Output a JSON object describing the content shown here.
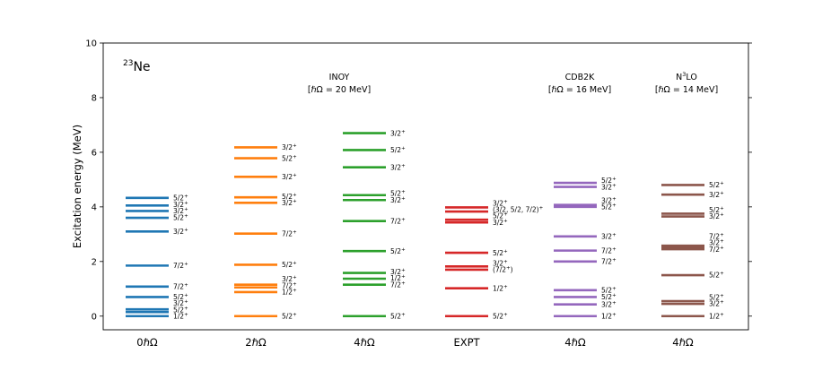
{
  "chart_data": {
    "type": "level-scheme",
    "nucleus": "23Ne",
    "nucleus_mass": "23",
    "nucleus_symbol": "Ne",
    "ylabel": "Excitation energy (MeV)",
    "ylim": [
      -0.5,
      10
    ],
    "yticks": [
      "0",
      "2",
      "4",
      "6",
      "8",
      "10"
    ],
    "grid": false,
    "annotations": {
      "inoy": {
        "line1": "INOY",
        "line2": "[ℏΩ = 20 MeV]"
      },
      "cdb2k": {
        "line1": "CDB2K",
        "line2": "[ℏΩ = 16 MeV]"
      },
      "n3lo": {
        "line1_main": "N",
        "line1_sup": "3",
        "line1_rest": "LO",
        "line2": "[ℏΩ = 14 MeV]"
      }
    },
    "columns": [
      {
        "label": "0ℏΩ",
        "color": "#1f77b4",
        "levels": [
          {
            "e": 0.0,
            "j": "1/2+"
          },
          {
            "e": 0.15,
            "j": "5/2+"
          },
          {
            "e": 0.25,
            "j": "3/2+"
          },
          {
            "e": 0.7,
            "j": "5/2+"
          },
          {
            "e": 1.08,
            "j": "7/2+"
          },
          {
            "e": 1.85,
            "j": "7/2+"
          },
          {
            "e": 3.1,
            "j": "3/2+"
          },
          {
            "e": 3.6,
            "j": "5/2+"
          },
          {
            "e": 3.85,
            "j": "3/2+"
          },
          {
            "e": 4.05,
            "j": "3/2+"
          },
          {
            "e": 4.33,
            "j": "5/2+"
          }
        ]
      },
      {
        "label": "2ℏΩ",
        "color": "#ff7f0e",
        "levels": [
          {
            "e": 0.0,
            "j": "5/2+"
          },
          {
            "e": 0.88,
            "j": "1/2+"
          },
          {
            "e": 1.05,
            "j": "7/2+"
          },
          {
            "e": 1.15,
            "j": "3/2+"
          },
          {
            "e": 1.88,
            "j": "5/2+"
          },
          {
            "e": 3.02,
            "j": "7/2+"
          },
          {
            "e": 4.15,
            "j": "3/2+"
          },
          {
            "e": 4.35,
            "j": "5/2+"
          },
          {
            "e": 5.1,
            "j": "3/2+"
          },
          {
            "e": 5.78,
            "j": "5/2+"
          },
          {
            "e": 6.18,
            "j": "3/2+"
          }
        ]
      },
      {
        "label": "4ℏΩ",
        "color": "#2ca02c",
        "levels": [
          {
            "e": 0.0,
            "j": "5/2+"
          },
          {
            "e": 1.15,
            "j": "7/2+"
          },
          {
            "e": 1.37,
            "j": "1/2+"
          },
          {
            "e": 1.58,
            "j": "3/2+"
          },
          {
            "e": 2.38,
            "j": "5/2+"
          },
          {
            "e": 3.48,
            "j": "7/2+"
          },
          {
            "e": 4.25,
            "j": "3/2+"
          },
          {
            "e": 4.43,
            "j": "5/2+"
          },
          {
            "e": 5.45,
            "j": "3/2+"
          },
          {
            "e": 6.08,
            "j": "5/2+"
          },
          {
            "e": 6.7,
            "j": "3/2+"
          }
        ]
      },
      {
        "label": "EXPT",
        "color": "#d62728",
        "levels": [
          {
            "e": 0.0,
            "j": "5/2+"
          },
          {
            "e": 1.02,
            "j": "1/2+"
          },
          {
            "e": 1.7,
            "j": "(7/2+)"
          },
          {
            "e": 1.82,
            "j": "3/2+"
          },
          {
            "e": 2.32,
            "j": "5/2+"
          },
          {
            "e": 3.43,
            "j": "3/2+"
          },
          {
            "e": 3.53,
            "j": "5/2+"
          },
          {
            "e": 3.83,
            "j": "(3/2, 5/2, 7/2)+"
          },
          {
            "e": 3.98,
            "j": "3/2+"
          }
        ]
      },
      {
        "label": "4ℏΩ",
        "color": "#9467bd",
        "levels": [
          {
            "e": 0.0,
            "j": "1/2+"
          },
          {
            "e": 0.43,
            "j": "3/2+"
          },
          {
            "e": 0.7,
            "j": "5/2+"
          },
          {
            "e": 0.95,
            "j": "5/2+"
          },
          {
            "e": 2.0,
            "j": "7/2+"
          },
          {
            "e": 2.4,
            "j": "7/2+"
          },
          {
            "e": 2.92,
            "j": "3/2+"
          },
          {
            "e": 4.0,
            "j": "5/2+"
          },
          {
            "e": 4.07,
            "j": "3/2+"
          },
          {
            "e": 4.73,
            "j": "3/2+"
          },
          {
            "e": 4.88,
            "j": "5/2+"
          }
        ]
      },
      {
        "label": "4ℏΩ",
        "color": "#8c564b",
        "levels": [
          {
            "e": 0.0,
            "j": "1/2+"
          },
          {
            "e": 0.45,
            "j": "3/2+"
          },
          {
            "e": 0.55,
            "j": "5/2+"
          },
          {
            "e": 1.5,
            "j": "5/2+"
          },
          {
            "e": 2.45,
            "j": "7/2+"
          },
          {
            "e": 2.52,
            "j": "3/2+"
          },
          {
            "e": 2.58,
            "j": "7/2+"
          },
          {
            "e": 3.65,
            "j": "3/2+"
          },
          {
            "e": 3.75,
            "j": "5/2+"
          },
          {
            "e": 4.45,
            "j": "3/2+"
          },
          {
            "e": 4.8,
            "j": "5/2+"
          }
        ]
      }
    ]
  }
}
